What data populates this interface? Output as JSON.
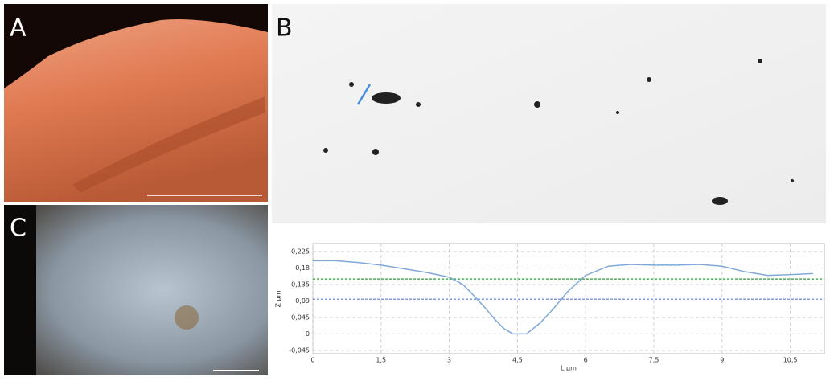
{
  "panels": {
    "a": "A",
    "b": "B",
    "c": "C"
  },
  "chart_data": {
    "type": "line",
    "xlabel": "L µm",
    "ylabel": "Z µm",
    "x": [
      0,
      0.5,
      1,
      1.5,
      2,
      2.5,
      3,
      3.3,
      3.5,
      3.8,
      4,
      4.2,
      4.4,
      4.7,
      5,
      5.3,
      5.6,
      6,
      6.5,
      7,
      7.5,
      8,
      8.5,
      9,
      9.5,
      10,
      10.5,
      11
    ],
    "series": [
      {
        "color": "#7fa8d8",
        "values": [
          0.2,
          0.2,
          0.195,
          0.188,
          0.178,
          0.168,
          0.155,
          0.135,
          0.11,
          0.07,
          0.04,
          0.015,
          0,
          0,
          0.03,
          0.07,
          0.115,
          0.16,
          0.185,
          0.19,
          0.188,
          0.188,
          0.19,
          0.185,
          0.17,
          0.16,
          0.162,
          0.165
        ]
      }
    ],
    "ref_lines": [
      {
        "value": 0.15,
        "color": "#2e9e2e"
      },
      {
        "value": 0.095,
        "color": "#5a7fd0"
      }
    ],
    "xlim": [
      0,
      11.25
    ],
    "ylim": [
      -0.054,
      0.247
    ],
    "xticks": [
      0,
      {
        "value": 1.5,
        "label": "1,5"
      },
      3,
      {
        "value": 4.5,
        "label": "4,5"
      },
      6,
      {
        "value": 7.5,
        "label": "7,5"
      },
      9,
      {
        "value": 10.5,
        "label": "10,5"
      }
    ],
    "yticks": [
      {
        "value": -0.045,
        "label": "-0,045"
      },
      0,
      {
        "value": 0.045,
        "label": "0,045"
      },
      {
        "value": 0.09,
        "label": "0,09"
      },
      {
        "value": 0.135,
        "label": "0,135"
      },
      {
        "value": 0.18,
        "label": "0,18"
      },
      {
        "value": 0.225,
        "label": "0,225"
      }
    ],
    "grid": true
  }
}
